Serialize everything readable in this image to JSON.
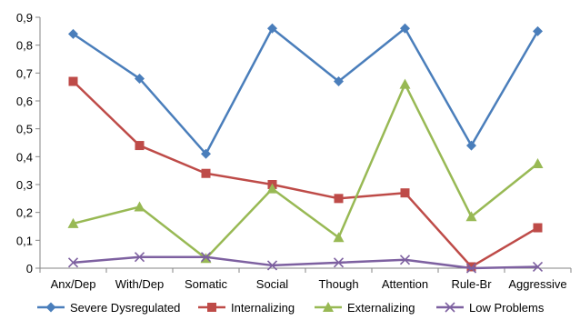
{
  "chart_data": {
    "type": "line",
    "title": "",
    "xlabel": "",
    "ylabel": "",
    "categories": [
      "Anx/Dep",
      "With/Dep",
      "Somatic",
      "Social",
      "Though",
      "Attention",
      "Rule-Br",
      "Aggressive"
    ],
    "ylim": [
      0,
      0.9
    ],
    "yticks": [
      "0",
      "0,1",
      "0,2",
      "0,3",
      "0,4",
      "0,5",
      "0,6",
      "0,7",
      "0,8",
      "0,9"
    ],
    "grid": false,
    "legend_position": "bottom",
    "series": [
      {
        "name": "Severe Dysregulated",
        "color": "#4a7ebb",
        "marker": "diamond",
        "values": [
          0.84,
          0.68,
          0.41,
          0.86,
          0.67,
          0.86,
          0.44,
          0.85
        ]
      },
      {
        "name": "Internalizing",
        "color": "#be4b48",
        "marker": "square",
        "values": [
          0.67,
          0.44,
          0.34,
          0.3,
          0.25,
          0.27,
          0.005,
          0.145
        ]
      },
      {
        "name": "Externalizing",
        "color": "#98b954",
        "marker": "triangle",
        "values": [
          0.16,
          0.22,
          0.035,
          0.285,
          0.11,
          0.66,
          0.185,
          0.375
        ]
      },
      {
        "name": "Low Problems",
        "color": "#7d60a0",
        "marker": "x",
        "values": [
          0.02,
          0.04,
          0.04,
          0.01,
          0.02,
          0.03,
          0.0,
          0.005
        ]
      }
    ]
  }
}
